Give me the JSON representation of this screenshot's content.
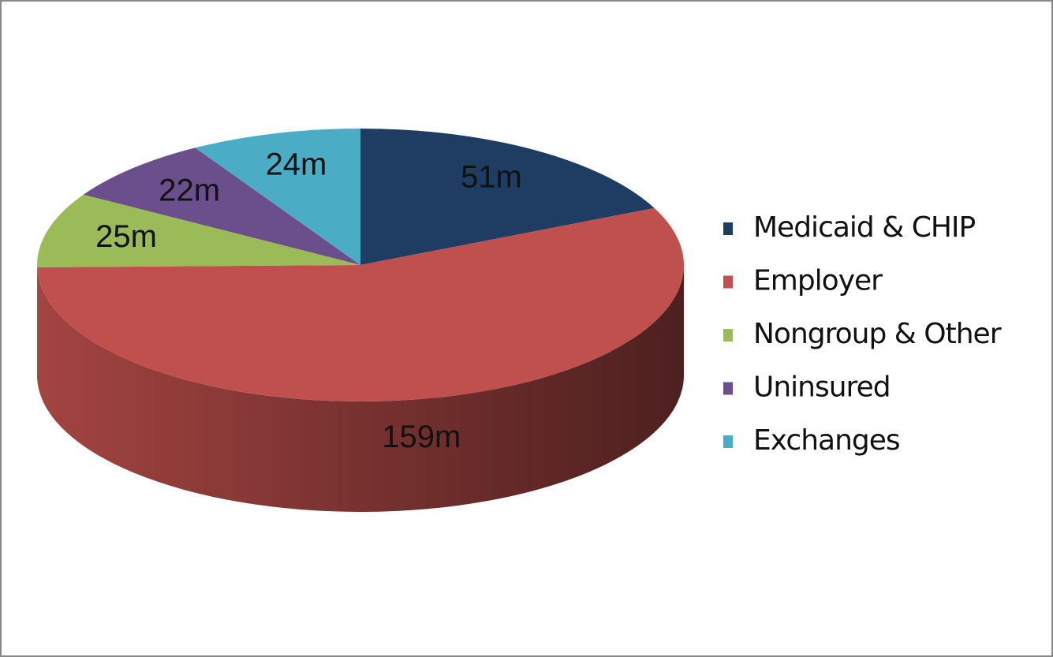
{
  "chart_data": {
    "type": "pie",
    "categories": [
      "Medicaid & CHIP",
      "Employer",
      "Nongroup & Other",
      "Uninsured",
      "Exchanges"
    ],
    "values": [
      51,
      159,
      25,
      22,
      24
    ],
    "value_labels": [
      "51m",
      "159m",
      "25m",
      "22m",
      "24m"
    ],
    "colors": [
      "#1f3d63",
      "#c0504d",
      "#9bbb59",
      "#6b4e8c",
      "#4bacc6"
    ],
    "legend": "right"
  }
}
